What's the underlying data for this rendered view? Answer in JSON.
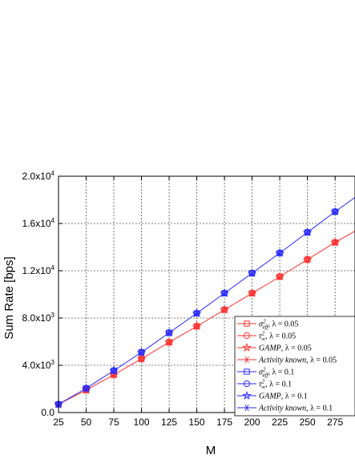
{
  "chart_data": {
    "type": "line",
    "xlabel": "M",
    "ylabel": "Sum Rate [bps]",
    "xlim": [
      25,
      293
    ],
    "ylim": [
      0,
      20000
    ],
    "x_ticks": [
      25,
      50,
      75,
      100,
      125,
      150,
      175,
      200,
      225,
      250,
      275
    ],
    "x_tick_labels": [
      "25",
      "50",
      "75",
      "100",
      "125",
      "150",
      "175",
      "200",
      "225",
      "250",
      "275"
    ],
    "y_ticks": [
      0,
      4000,
      8000,
      12000,
      16000,
      20000
    ],
    "y_tick_labels": [
      {
        "mantissa": "0.0",
        "exp": ""
      },
      {
        "mantissa": "4.0x10",
        "exp": "3"
      },
      {
        "mantissa": "8.0x10",
        "exp": "3"
      },
      {
        "mantissa": "1.2x10",
        "exp": "4"
      },
      {
        "mantissa": "1.6x10",
        "exp": "4"
      },
      {
        "mantissa": "2.0x10",
        "exp": "4"
      }
    ],
    "grid": true,
    "legend_position": "lower-right",
    "x": [
      25,
      50,
      75,
      100,
      125,
      150,
      175,
      200,
      225,
      250,
      275
    ],
    "series": [
      {
        "name": "σ²_eff, λ = 0.05",
        "color": "#ff3030",
        "marker": "square",
        "values": [
          700,
          1900,
          3200,
          4550,
          5950,
          7300,
          8700,
          10100,
          11500,
          12950,
          14400
        ],
        "line_end_value": 15350
      },
      {
        "name": "τ²_∞, λ = 0.05",
        "color": "#ff3030",
        "marker": "circle",
        "values": [
          700,
          1900,
          3200,
          4550,
          5950,
          7300,
          8700,
          10100,
          11500,
          12950,
          14400
        ]
      },
      {
        "name": "GAMP, λ = 0.05",
        "color": "#ff3030",
        "marker": "star",
        "values": [
          700,
          1900,
          3200,
          4550,
          5950,
          7300,
          8700,
          10100,
          11500,
          12950,
          14400
        ]
      },
      {
        "name": "Activity known, λ = 0.05",
        "color": "#ff3030",
        "marker": "asterisk",
        "values": [
          700,
          1900,
          3200,
          4550,
          5950,
          7300,
          8700,
          10100,
          11500,
          12950,
          14400
        ]
      },
      {
        "name": "σ²_eff, λ = 0.1",
        "color": "#2a2aff",
        "marker": "square",
        "values": [
          700,
          2050,
          3550,
          5100,
          6750,
          8400,
          10100,
          11800,
          13500,
          15250,
          17000
        ],
        "line_end_value": 18200
      },
      {
        "name": "τ²_∞, λ = 0.1",
        "color": "#2a2aff",
        "marker": "circle",
        "values": [
          700,
          2050,
          3550,
          5100,
          6750,
          8400,
          10100,
          11800,
          13500,
          15250,
          17000
        ]
      },
      {
        "name": "GAMP, λ = 0.1",
        "color": "#2a2aff",
        "marker": "star",
        "values": [
          700,
          2050,
          3550,
          5100,
          6750,
          8400,
          10100,
          11800,
          13500,
          15250,
          17000
        ]
      },
      {
        "name": "Activity known, λ = 0.1",
        "color": "#2a2aff",
        "marker": "asterisk",
        "values": [
          700,
          2050,
          3550,
          5100,
          6750,
          8400,
          10100,
          11800,
          13500,
          15250,
          17000
        ]
      }
    ]
  },
  "legend": {
    "entries": [
      {
        "base": "σ",
        "sup": "2",
        "sub": "eff",
        "tail": ", λ = 0.05"
      },
      {
        "base": "τ",
        "sup": "2",
        "sub": "∞",
        "tail": ", λ = 0.05"
      },
      {
        "base": "GAMP",
        "sup": "",
        "sub": "",
        "tail": ", λ = 0.05"
      },
      {
        "base": "Activity known",
        "sup": "",
        "sub": "",
        "tail": ", λ = 0.05"
      },
      {
        "base": "σ",
        "sup": "2",
        "sub": "eff",
        "tail": ", λ = 0.1"
      },
      {
        "base": "τ",
        "sup": "2",
        "sub": "∞",
        "tail": ", λ = 0.1"
      },
      {
        "base": "GAMP",
        "sup": "",
        "sub": "",
        "tail": ", λ = 0.1"
      },
      {
        "base": "Activity known",
        "sup": "",
        "sub": "",
        "tail": ", λ = 0.1"
      }
    ]
  }
}
